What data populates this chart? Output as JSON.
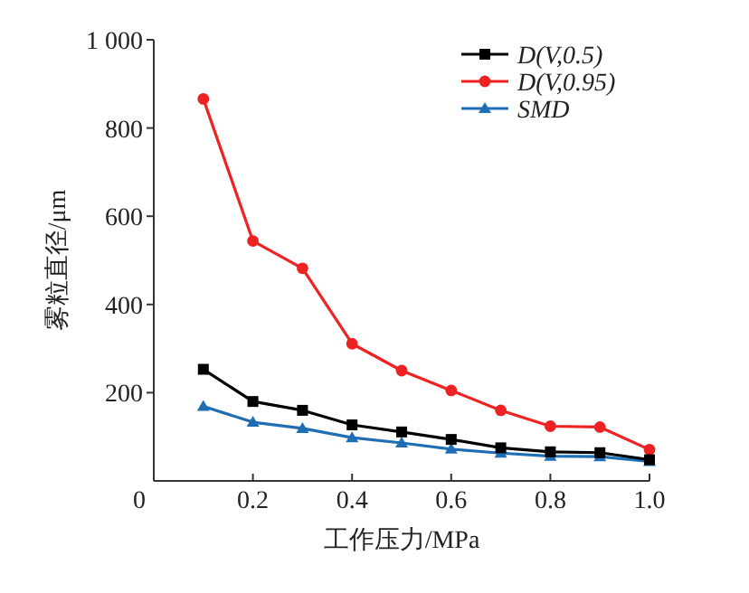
{
  "chart_data": {
    "type": "line",
    "xlabel": "工作压力/MPa",
    "ylabel": "雾粒直径/μm",
    "x": [
      0.1,
      0.2,
      0.3,
      0.4,
      0.5,
      0.6,
      0.7,
      0.8,
      0.9,
      1.0
    ],
    "xlim": [
      0,
      1.0
    ],
    "xticks": [
      {
        "value": 0,
        "label": "0"
      },
      0.2,
      0.4,
      0.6,
      {
        "value": 0.8,
        "label": "0.8"
      },
      {
        "value": 1.0,
        "label": "1.0"
      }
    ],
    "ylim": [
      0,
      1000
    ],
    "yticks": [
      200,
      400,
      600,
      800,
      {
        "value": 1000,
        "label": "1 000"
      }
    ],
    "grid": false,
    "legend": "top right",
    "line_style": "solid",
    "series": [
      {
        "name": "D(V,0.5)",
        "color": "#000000",
        "marker": "square",
        "values": [
          253,
          180,
          160,
          127,
          111,
          94,
          75,
          66,
          64,
          48
        ]
      },
      {
        "name": "D(V,0.95)",
        "color": "#ee2222",
        "marker": "circle",
        "values": [
          866,
          544,
          482,
          311,
          250,
          205,
          160,
          124,
          122,
          71
        ]
      },
      {
        "name": "SMD",
        "color": "#1f6db5",
        "marker": "triangle",
        "values": [
          169,
          133,
          119,
          98,
          86,
          72,
          63,
          56,
          55,
          44
        ]
      }
    ]
  }
}
